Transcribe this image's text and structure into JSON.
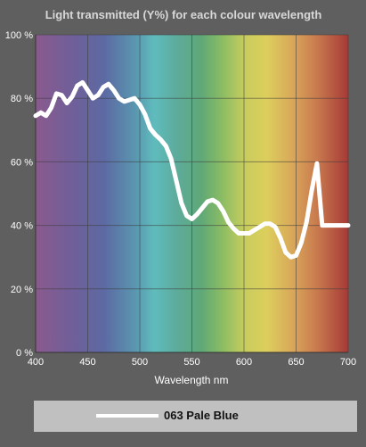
{
  "chart_data": {
    "type": "line",
    "title": "Light transmitted (Y%) for each colour wavelength",
    "xlabel": "Wavelength nm",
    "ylabel": "",
    "xlim": [
      400,
      700
    ],
    "ylim": [
      0,
      100
    ],
    "x_ticks": [
      400,
      450,
      500,
      550,
      600,
      650,
      700
    ],
    "y_ticks": [
      0,
      20,
      40,
      60,
      80,
      100
    ],
    "y_tick_suffix": " %",
    "grid": true,
    "background": "visible spectrum gradient",
    "series": [
      {
        "name": "063 Pale Blue",
        "color": "#ffffff",
        "x": [
          400,
          405,
          410,
          415,
          420,
          425,
          430,
          435,
          440,
          445,
          450,
          455,
          460,
          465,
          470,
          475,
          480,
          485,
          490,
          495,
          500,
          505,
          510,
          515,
          520,
          525,
          530,
          535,
          540,
          545,
          550,
          555,
          560,
          565,
          570,
          575,
          580,
          585,
          590,
          595,
          600,
          605,
          610,
          615,
          620,
          625,
          630,
          635,
          640,
          645,
          650,
          655,
          660,
          665,
          670,
          675,
          680,
          685,
          690,
          695,
          700
        ],
        "y": [
          74.5,
          75.5,
          74.5,
          77,
          81.5,
          81,
          78.5,
          80.5,
          84,
          85,
          82.5,
          80,
          81,
          83.5,
          84.5,
          82.5,
          80,
          79,
          79.5,
          80,
          78,
          75,
          70.5,
          68.5,
          67,
          65,
          61,
          54,
          47,
          43,
          42,
          43.5,
          45.5,
          47.5,
          48,
          47,
          44.5,
          41,
          39,
          37.5,
          37.5,
          37.5,
          38.5,
          39.5,
          40.5,
          40.5,
          39.5,
          36,
          31.5,
          30,
          30.5,
          34.5,
          41,
          51,
          59.5,
          40,
          40,
          40,
          40,
          40,
          40
        ]
      }
    ],
    "legend": {
      "placement": "bottom",
      "entries": [
        "063 Pale Blue"
      ]
    }
  }
}
